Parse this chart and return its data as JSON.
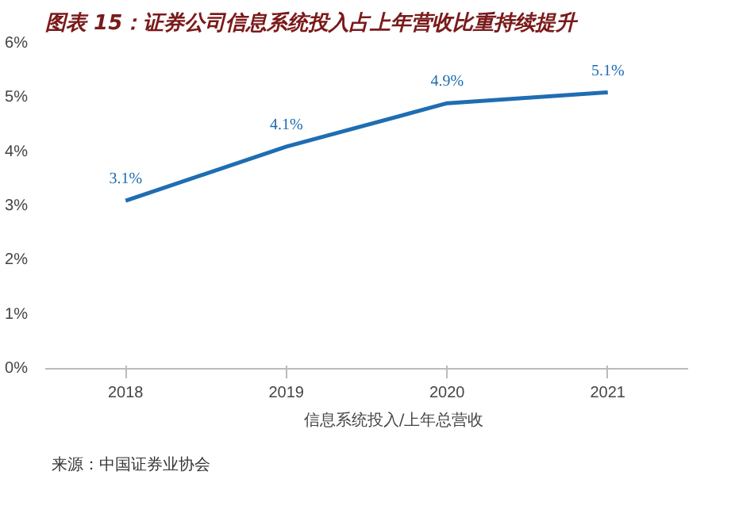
{
  "chart_data": {
    "type": "line",
    "title": "图表 15：证券公司信息系统投入占上年营收比重持续提升",
    "categories": [
      "2018",
      "2019",
      "2020",
      "2021"
    ],
    "series": [
      {
        "name": "信息系统投入/上年总营收",
        "color": "#1f6db2",
        "values": [
          3.1,
          4.1,
          4.9,
          5.1
        ],
        "value_labels": [
          "3.1%",
          "4.1%",
          "4.9%",
          "5.1%"
        ]
      }
    ],
    "ylim": [
      0,
      6
    ],
    "yticks": [
      {
        "value": 0,
        "label": "0%"
      },
      {
        "value": 1,
        "label": "1%"
      },
      {
        "value": 2,
        "label": "2%"
      },
      {
        "value": 3,
        "label": "3%"
      },
      {
        "value": 4,
        "label": "4%"
      },
      {
        "value": 5,
        "label": "5%"
      },
      {
        "value": 6,
        "label": "6%"
      }
    ],
    "grid": false,
    "legend": "bottom",
    "marker": "none",
    "line_style": "solid",
    "annotations": [
      "来源：中国证券业协会"
    ]
  }
}
